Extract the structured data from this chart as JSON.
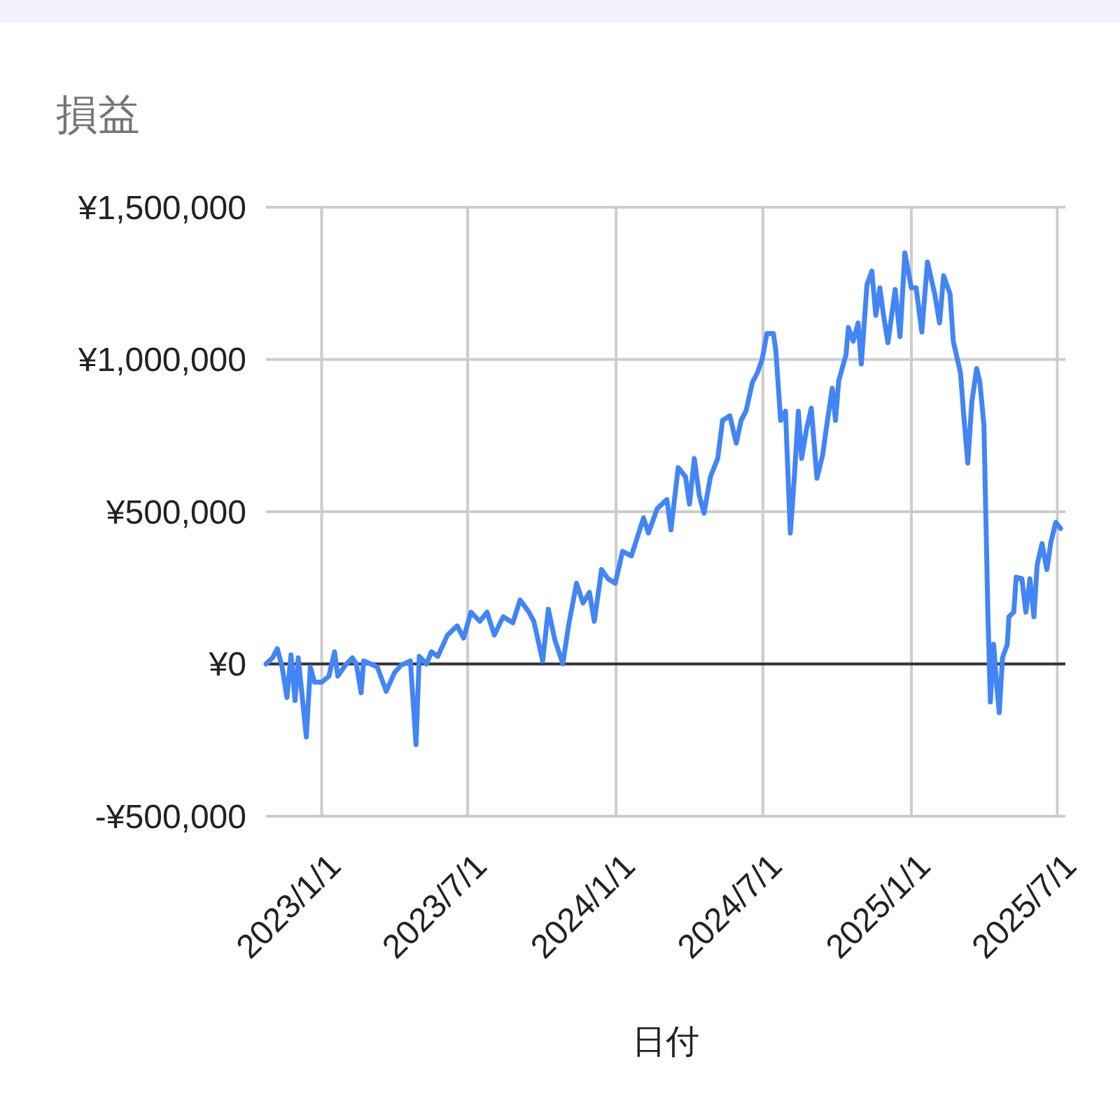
{
  "chart_data": {
    "type": "line",
    "title": "損益",
    "xlabel": "日付",
    "x": [
      "2022-10-24",
      "2022-11-01",
      "2022-11-07",
      "2022-11-13",
      "2022-11-19",
      "2022-11-24",
      "2022-11-29",
      "2022-12-03",
      "2022-12-13",
      "2022-12-18",
      "2022-12-23",
      "2023-01-01",
      "2023-01-10",
      "2023-01-17",
      "2023-01-21",
      "2023-01-30",
      "2023-02-08",
      "2023-02-13",
      "2023-02-19",
      "2023-02-22",
      "2023-03-03",
      "2023-03-11",
      "2023-03-22",
      "2023-04-01",
      "2023-04-09",
      "2023-04-21",
      "2023-04-28",
      "2023-05-02",
      "2023-05-11",
      "2023-05-17",
      "2023-05-25",
      "2023-06-06",
      "2023-06-18",
      "2023-06-26",
      "2023-07-05",
      "2023-07-16",
      "2023-07-25",
      "2023-08-03",
      "2023-08-14",
      "2023-08-26",
      "2023-09-04",
      "2023-09-15",
      "2023-09-21",
      "2023-09-24",
      "2023-10-02",
      "2023-10-09",
      "2023-10-17",
      "2023-10-27",
      "2023-11-03",
      "2023-11-13",
      "2023-11-21",
      "2023-11-29",
      "2023-12-05",
      "2023-12-14",
      "2023-12-22",
      "2023-12-31",
      "2024-01-09",
      "2024-01-20",
      "2024-02-04",
      "2024-02-10",
      "2024-02-21",
      "2024-03-04",
      "2024-03-09",
      "2024-03-18",
      "2024-03-27",
      "2024-04-01",
      "2024-04-07",
      "2024-04-13",
      "2024-04-19",
      "2024-04-27",
      "2024-05-06",
      "2024-05-12",
      "2024-05-21",
      "2024-05-29",
      "2024-06-04",
      "2024-06-10",
      "2024-06-18",
      "2024-06-24",
      "2024-06-30",
      "2024-07-06",
      "2024-07-14",
      "2024-07-17",
      "2024-07-23",
      "2024-07-29",
      "2024-08-04",
      "2024-08-09",
      "2024-08-14",
      "2024-08-18",
      "2024-08-24",
      "2024-08-30",
      "2024-09-06",
      "2024-09-13",
      "2024-09-19",
      "2024-09-25",
      "2024-09-29",
      "2024-10-03",
      "2024-10-12",
      "2024-10-15",
      "2024-10-21",
      "2024-10-27",
      "2024-10-31",
      "2024-11-07",
      "2024-11-13",
      "2024-11-18",
      "2024-11-23",
      "2024-11-27",
      "2024-12-03",
      "2024-12-12",
      "2024-12-18",
      "2024-12-24",
      "2025-01-01",
      "2025-01-07",
      "2025-01-14",
      "2025-01-21",
      "2025-01-30",
      "2025-02-05",
      "2025-02-10",
      "2025-02-18",
      "2025-02-22",
      "2025-03-03",
      "2025-03-07",
      "2025-03-12",
      "2025-03-17",
      "2025-03-23",
      "2025-03-27",
      "2025-04-01",
      "2025-04-06",
      "2025-04-09",
      "2025-04-13",
      "2025-04-17",
      "2025-04-20",
      "2025-04-24",
      "2025-04-30",
      "2025-05-02",
      "2025-05-08",
      "2025-05-11",
      "2025-05-18",
      "2025-05-23",
      "2025-05-28",
      "2025-06-02",
      "2025-06-06",
      "2025-06-12",
      "2025-06-18",
      "2025-06-23",
      "2025-06-29",
      "2025-07-05"
    ],
    "series": [
      {
        "color": "#4285f4",
        "values": [
          0,
          20000,
          50000,
          -10000,
          -110000,
          30000,
          -120000,
          20000,
          -240000,
          -10000,
          -60000,
          -60000,
          -40000,
          40000,
          -40000,
          -5000,
          20000,
          0,
          -95000,
          10000,
          0,
          -10000,
          -90000,
          -30000,
          -5000,
          10000,
          -265000,
          25000,
          0,
          40000,
          25000,
          95000,
          125000,
          85000,
          170000,
          140000,
          170000,
          95000,
          155000,
          135000,
          210000,
          170000,
          140000,
          105000,
          10000,
          180000,
          80000,
          0,
          125000,
          265000,
          200000,
          235000,
          140000,
          310000,
          280000,
          265000,
          370000,
          355000,
          480000,
          430000,
          510000,
          540000,
          440000,
          645000,
          615000,
          525000,
          675000,
          555000,
          495000,
          615000,
          675000,
          800000,
          815000,
          725000,
          800000,
          830000,
          925000,
          955000,
          1000000,
          1085000,
          1085000,
          1030000,
          800000,
          830000,
          430000,
          615000,
          830000,
          675000,
          770000,
          840000,
          610000,
          685000,
          800000,
          905000,
          800000,
          930000,
          1015000,
          1105000,
          1060000,
          1120000,
          985000,
          1245000,
          1290000,
          1145000,
          1235000,
          1155000,
          1055000,
          1230000,
          1075000,
          1350000,
          1235000,
          1235000,
          1090000,
          1320000,
          1215000,
          1120000,
          1275000,
          1215000,
          1060000,
          955000,
          815000,
          660000,
          860000,
          970000,
          925000,
          785000,
          155000,
          -125000,
          65000,
          -75000,
          -160000,
          20000,
          65000,
          155000,
          170000,
          285000,
          280000,
          170000,
          280000,
          155000,
          325000,
          395000,
          310000,
          400000,
          465000,
          445000
        ]
      }
    ],
    "xlim": [
      "2022-10-24",
      "2025-07-11"
    ],
    "xticks": [
      {
        "value": "2023-01-01",
        "label": "2023/1/1"
      },
      {
        "value": "2023-07-01",
        "label": "2023/7/1"
      },
      {
        "value": "2024-01-01",
        "label": "2024/1/1"
      },
      {
        "value": "2024-07-01",
        "label": "2024/7/1"
      },
      {
        "value": "2025-01-01",
        "label": "2025/1/1"
      },
      {
        "value": "2025-07-01",
        "label": "2025/7/1"
      }
    ],
    "ylim": [
      -500000,
      1500000
    ],
    "yticks": [
      {
        "value": -500000,
        "label": "-¥500,000"
      },
      {
        "value": 0,
        "label": "¥0"
      },
      {
        "value": 500000,
        "label": "¥500,000"
      },
      {
        "value": 1000000,
        "label": "¥1,000,000"
      },
      {
        "value": 1500000,
        "label": "¥1,500,000"
      }
    ],
    "ref_lines": [
      {
        "axis": "y",
        "value": 0,
        "color": "#333333"
      }
    ],
    "grid": true
  }
}
